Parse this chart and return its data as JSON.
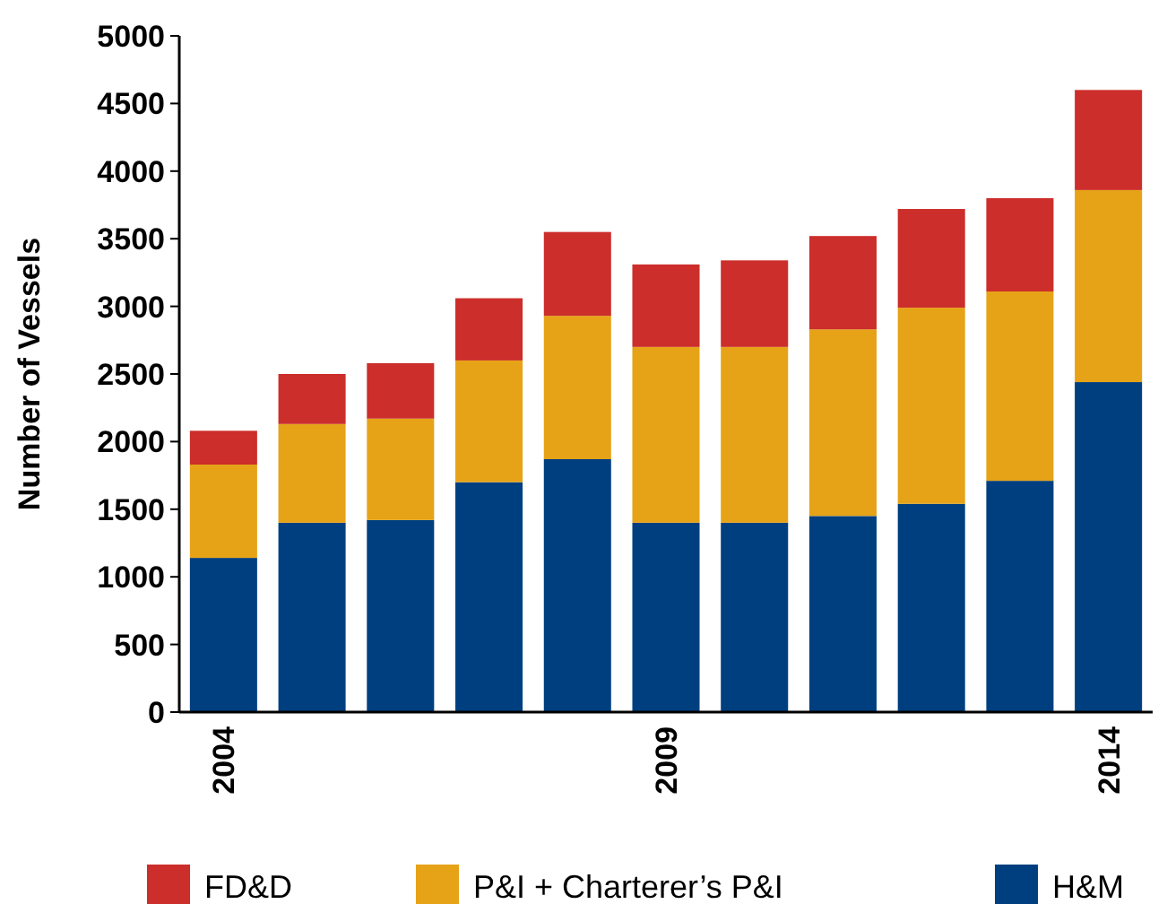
{
  "chart_data": {
    "type": "bar",
    "stacked": true,
    "ylabel": "Number of Vessels",
    "categories": [
      "2004",
      null,
      null,
      null,
      null,
      "2009",
      null,
      null,
      null,
      null,
      "2014"
    ],
    "series": [
      {
        "name": "H&M",
        "color": "#003f7f",
        "values": [
          1140,
          1400,
          1420,
          1700,
          1870,
          1400,
          1400,
          1450,
          1540,
          1710,
          2440
        ]
      },
      {
        "name": "P&I + Charterer’s P&I",
        "color": "#e6a317",
        "values": [
          690,
          730,
          750,
          900,
          1060,
          1300,
          1300,
          1380,
          1450,
          1400,
          1420
        ]
      },
      {
        "name": "FD&D",
        "color": "#cc2e2b",
        "values": [
          250,
          370,
          410,
          460,
          620,
          610,
          640,
          690,
          730,
          690,
          740
        ]
      }
    ],
    "ylim": [
      0,
      5000
    ],
    "yticks": [
      0,
      500,
      1000,
      1500,
      2000,
      2500,
      3000,
      3500,
      4000,
      4500,
      5000
    ],
    "grid": false,
    "legend": "bottom"
  }
}
